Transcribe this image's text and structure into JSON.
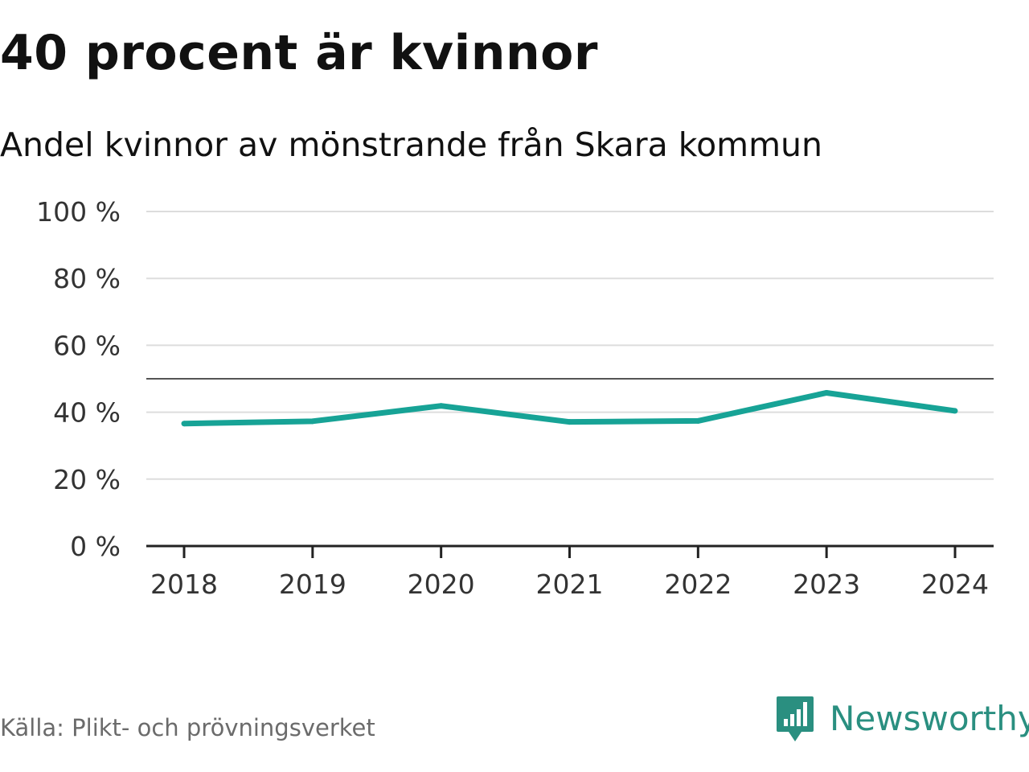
{
  "header": {
    "title": "40 procent är kvinnor",
    "subtitle": "Andel kvinnor av mönstrande från Skara kommun"
  },
  "footer": {
    "source": "Källa: Plikt- och prövningsverket",
    "brand": "Newsworthy",
    "brand_icon": "newsworthy-logo-icon"
  },
  "colors": {
    "line": "#17a396",
    "grid": "#dddddd",
    "reference": "#555555",
    "axis": "#222222",
    "brand": "#2a8f80"
  },
  "chart_data": {
    "type": "line",
    "title": "40 procent är kvinnor",
    "subtitle": "Andel kvinnor av mönstrande från Skara kommun",
    "xlabel": "",
    "ylabel": "",
    "x": [
      "2018",
      "2019",
      "2020",
      "2021",
      "2022",
      "2023",
      "2024"
    ],
    "series": [
      {
        "values": [
          36.6,
          37.3,
          41.9,
          37.1,
          37.4,
          45.8,
          40.4
        ]
      }
    ],
    "ylim": [
      0,
      100
    ],
    "y_ticks": [
      0,
      20,
      40,
      60,
      80,
      100
    ],
    "y_tick_labels": [
      "0 %",
      "20 %",
      "40 %",
      "60 %",
      "80 %",
      "100 %"
    ],
    "reference_line": 50,
    "grid": true,
    "legend": "none"
  }
}
